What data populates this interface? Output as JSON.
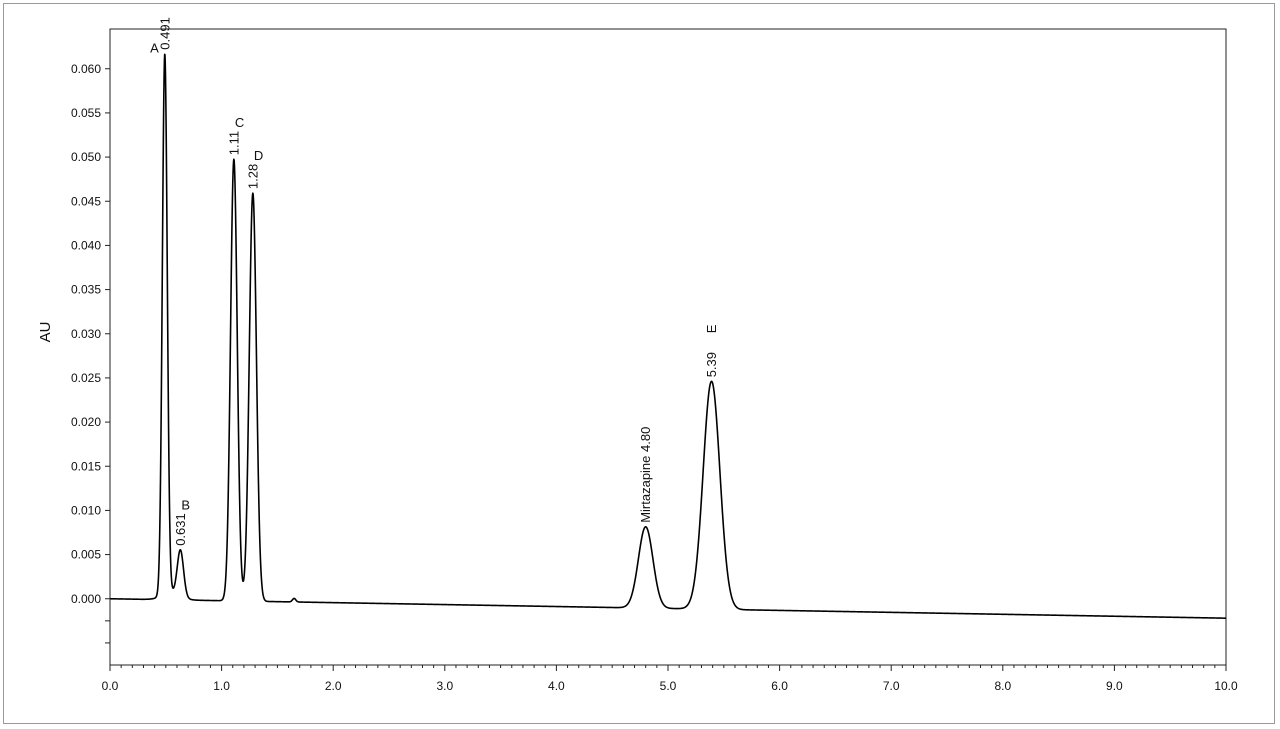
{
  "chart_data": {
    "type": "line",
    "title": "",
    "xlabel": "",
    "ylabel": "AU",
    "xlim": [
      0.0,
      10.0
    ],
    "ylim": [
      -0.0075,
      0.0645
    ],
    "grid": false,
    "legend": "none",
    "line_color": "#000000",
    "x_ticks": [
      "0.0",
      "1.0",
      "2.0",
      "3.0",
      "4.0",
      "5.0",
      "6.0",
      "7.0",
      "8.0",
      "9.0",
      "10.0"
    ],
    "x_tick_values": [
      0,
      1,
      2,
      3,
      4,
      5,
      6,
      7,
      8,
      9,
      10
    ],
    "y_ticks": [
      "0.000",
      "0.005",
      "0.010",
      "0.015",
      "0.020",
      "0.025",
      "0.030",
      "0.035",
      "0.040",
      "0.045",
      "0.050",
      "0.055",
      "0.060"
    ],
    "y_tick_values": [
      0,
      0.005,
      0.01,
      0.015,
      0.02,
      0.025,
      0.03,
      0.035,
      0.04,
      0.045,
      0.05,
      0.055,
      0.06
    ],
    "baseline": {
      "start": [
        0.0,
        0.0
      ],
      "end": [
        10.0,
        -0.0022
      ]
    },
    "peaks": [
      {
        "id": "A",
        "rt": 0.491,
        "rt_label": "0.491",
        "height": 0.0612,
        "width": 0.022,
        "name_label": "A"
      },
      {
        "id": "B",
        "rt": 0.631,
        "rt_label": "0.631",
        "height": 0.0052,
        "width": 0.028,
        "name_label": "B"
      },
      {
        "id": "C",
        "rt": 1.11,
        "rt_label": "1.11",
        "height": 0.05,
        "width": 0.03,
        "name_label": "C"
      },
      {
        "id": "D",
        "rt": 1.28,
        "rt_label": "1.28",
        "height": 0.0462,
        "width": 0.032,
        "name_label": "D"
      },
      {
        "id": "Mirtazapine",
        "rt": 4.8,
        "rt_label": "Mirtazapine 4.80",
        "height": 0.0092,
        "width": 0.065,
        "name_label": ""
      },
      {
        "id": "E",
        "rt": 5.39,
        "rt_label": "5.39",
        "height": 0.0258,
        "width": 0.075,
        "name_label": "E"
      }
    ],
    "minor_features": [
      {
        "x": 0.55,
        "height": 0.0008,
        "width": 0.08
      },
      {
        "x": 1.65,
        "height": 0.0004,
        "width": 0.015
      }
    ]
  }
}
